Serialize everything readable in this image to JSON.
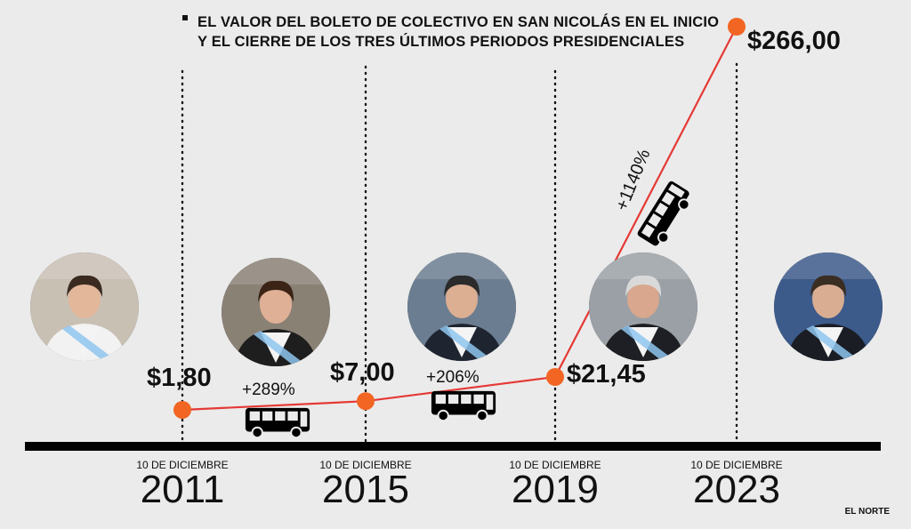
{
  "title_line1": "EL VALOR DEL BOLETO DE COLECTIVO EN SAN NICOLÁS EN EL INICIO",
  "title_line2": "Y EL CIERRE DE LOS TRES ÚLTIMOS PERIODOS PRESIDENCIALES",
  "credit": "EL NORTE",
  "colors": {
    "accent": "#f26522",
    "line": "#e53935",
    "text": "#111111",
    "background": "#ebebeb"
  },
  "chart_data": {
    "type": "line",
    "x": [
      "10 DE DICIEMBRE 2011",
      "10 DE DICIEMBRE 2015",
      "10 DE DICIEMBRE 2019",
      "10 DE DICIEMBRE 2023"
    ],
    "date_labels": [
      "10 DE DICIEMBRE",
      "10 DE DICIEMBRE",
      "10 DE DICIEMBRE",
      "10 DE DICIEMBRE"
    ],
    "years": [
      "2011",
      "2015",
      "2019",
      "2023"
    ],
    "values": [
      1.8,
      7.0,
      21.45,
      266.0
    ],
    "value_labels": [
      "$1,80",
      "$7,00",
      "$21,45",
      "$266,00"
    ],
    "changes": [
      "+289%",
      "+206%",
      "+1140%"
    ],
    "icons": [
      "bus-icon",
      "bus-icon",
      "bus-icon"
    ],
    "portraits": [
      "president-portrait",
      "president-portrait",
      "president-portrait",
      "president-portrait",
      "president-portrait"
    ]
  }
}
